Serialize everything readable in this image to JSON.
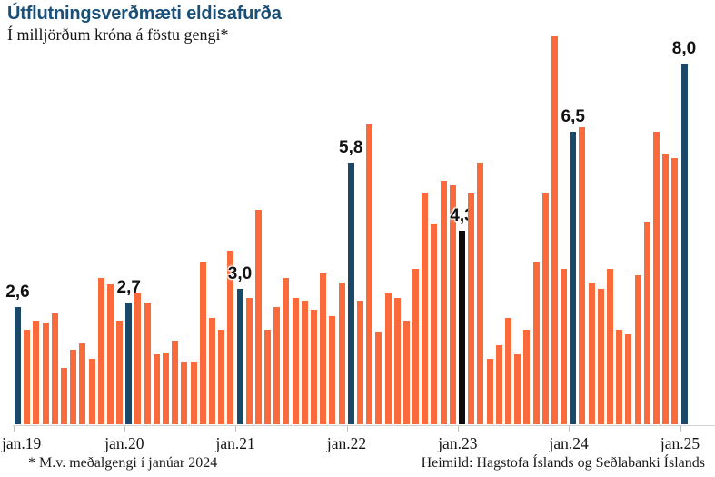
{
  "header": {
    "title": "Útflutningsverðmæti eldisafurða",
    "subtitle": "Í milljörðum króna á föstu gengi*"
  },
  "footer": {
    "note": "* M.v. meðalgengi í janúar 2024",
    "source": "Heimild: Hagstofa Íslands og Seðlabanki Íslands"
  },
  "colors": {
    "bar_default": "#fa6a3a",
    "bar_highlight": "#1c4867",
    "bar_black": "#0c0c0c",
    "title_text": "#1b4f76",
    "axis": "#d2d2d2"
  },
  "chart_data": {
    "type": "bar",
    "title": "Útflutningsverðmæti eldisafurða",
    "subtitle": "Í milljörðum króna á föstu gengi*",
    "ylabel": "milljarðar króna",
    "ylim": [
      0,
      8.8
    ],
    "grid": false,
    "legend": false,
    "x_start": "jan.19",
    "x_end": "jan.25",
    "x_frequency": "monthly",
    "values": [
      2.6,
      2.1,
      2.3,
      2.25,
      2.45,
      1.25,
      1.65,
      1.8,
      1.45,
      3.25,
      3.1,
      2.3,
      2.7,
      2.9,
      2.7,
      1.55,
      1.6,
      1.85,
      1.4,
      1.4,
      3.6,
      2.35,
      2.1,
      3.85,
      3.0,
      2.8,
      4.75,
      2.1,
      2.6,
      3.25,
      2.8,
      2.75,
      2.55,
      3.35,
      2.4,
      3.15,
      5.8,
      2.75,
      6.65,
      2.05,
      2.9,
      2.8,
      2.3,
      3.45,
      5.15,
      4.45,
      5.4,
      5.3,
      4.3,
      5.15,
      5.8,
      1.45,
      1.75,
      2.35,
      1.55,
      2.1,
      3.6,
      5.15,
      8.6,
      3.45,
      6.5,
      6.6,
      3.15,
      3.0,
      3.45,
      2.1,
      2.0,
      3.3,
      4.5,
      6.5,
      6.0,
      5.9,
      8.0
    ],
    "highlights": [
      {
        "index": 0,
        "label": "2,6",
        "color": "navy"
      },
      {
        "index": 12,
        "label": "2,7",
        "color": "navy"
      },
      {
        "index": 24,
        "label": "3,0",
        "color": "navy"
      },
      {
        "index": 36,
        "label": "5,8",
        "color": "navy"
      },
      {
        "index": 48,
        "label": "4,3",
        "color": "black"
      },
      {
        "index": 60,
        "label": "6,5",
        "color": "navy"
      },
      {
        "index": 72,
        "label": "8,0",
        "color": "navy"
      }
    ],
    "x_ticks": [
      {
        "index": 0,
        "label": "jan.19"
      },
      {
        "index": 12,
        "label": "jan.20"
      },
      {
        "index": 24,
        "label": "jan.21"
      },
      {
        "index": 36,
        "label": "jan.22"
      },
      {
        "index": 48,
        "label": "jan.23"
      },
      {
        "index": 60,
        "label": "jan.24"
      },
      {
        "index": 72,
        "label": "jan.25"
      }
    ]
  }
}
